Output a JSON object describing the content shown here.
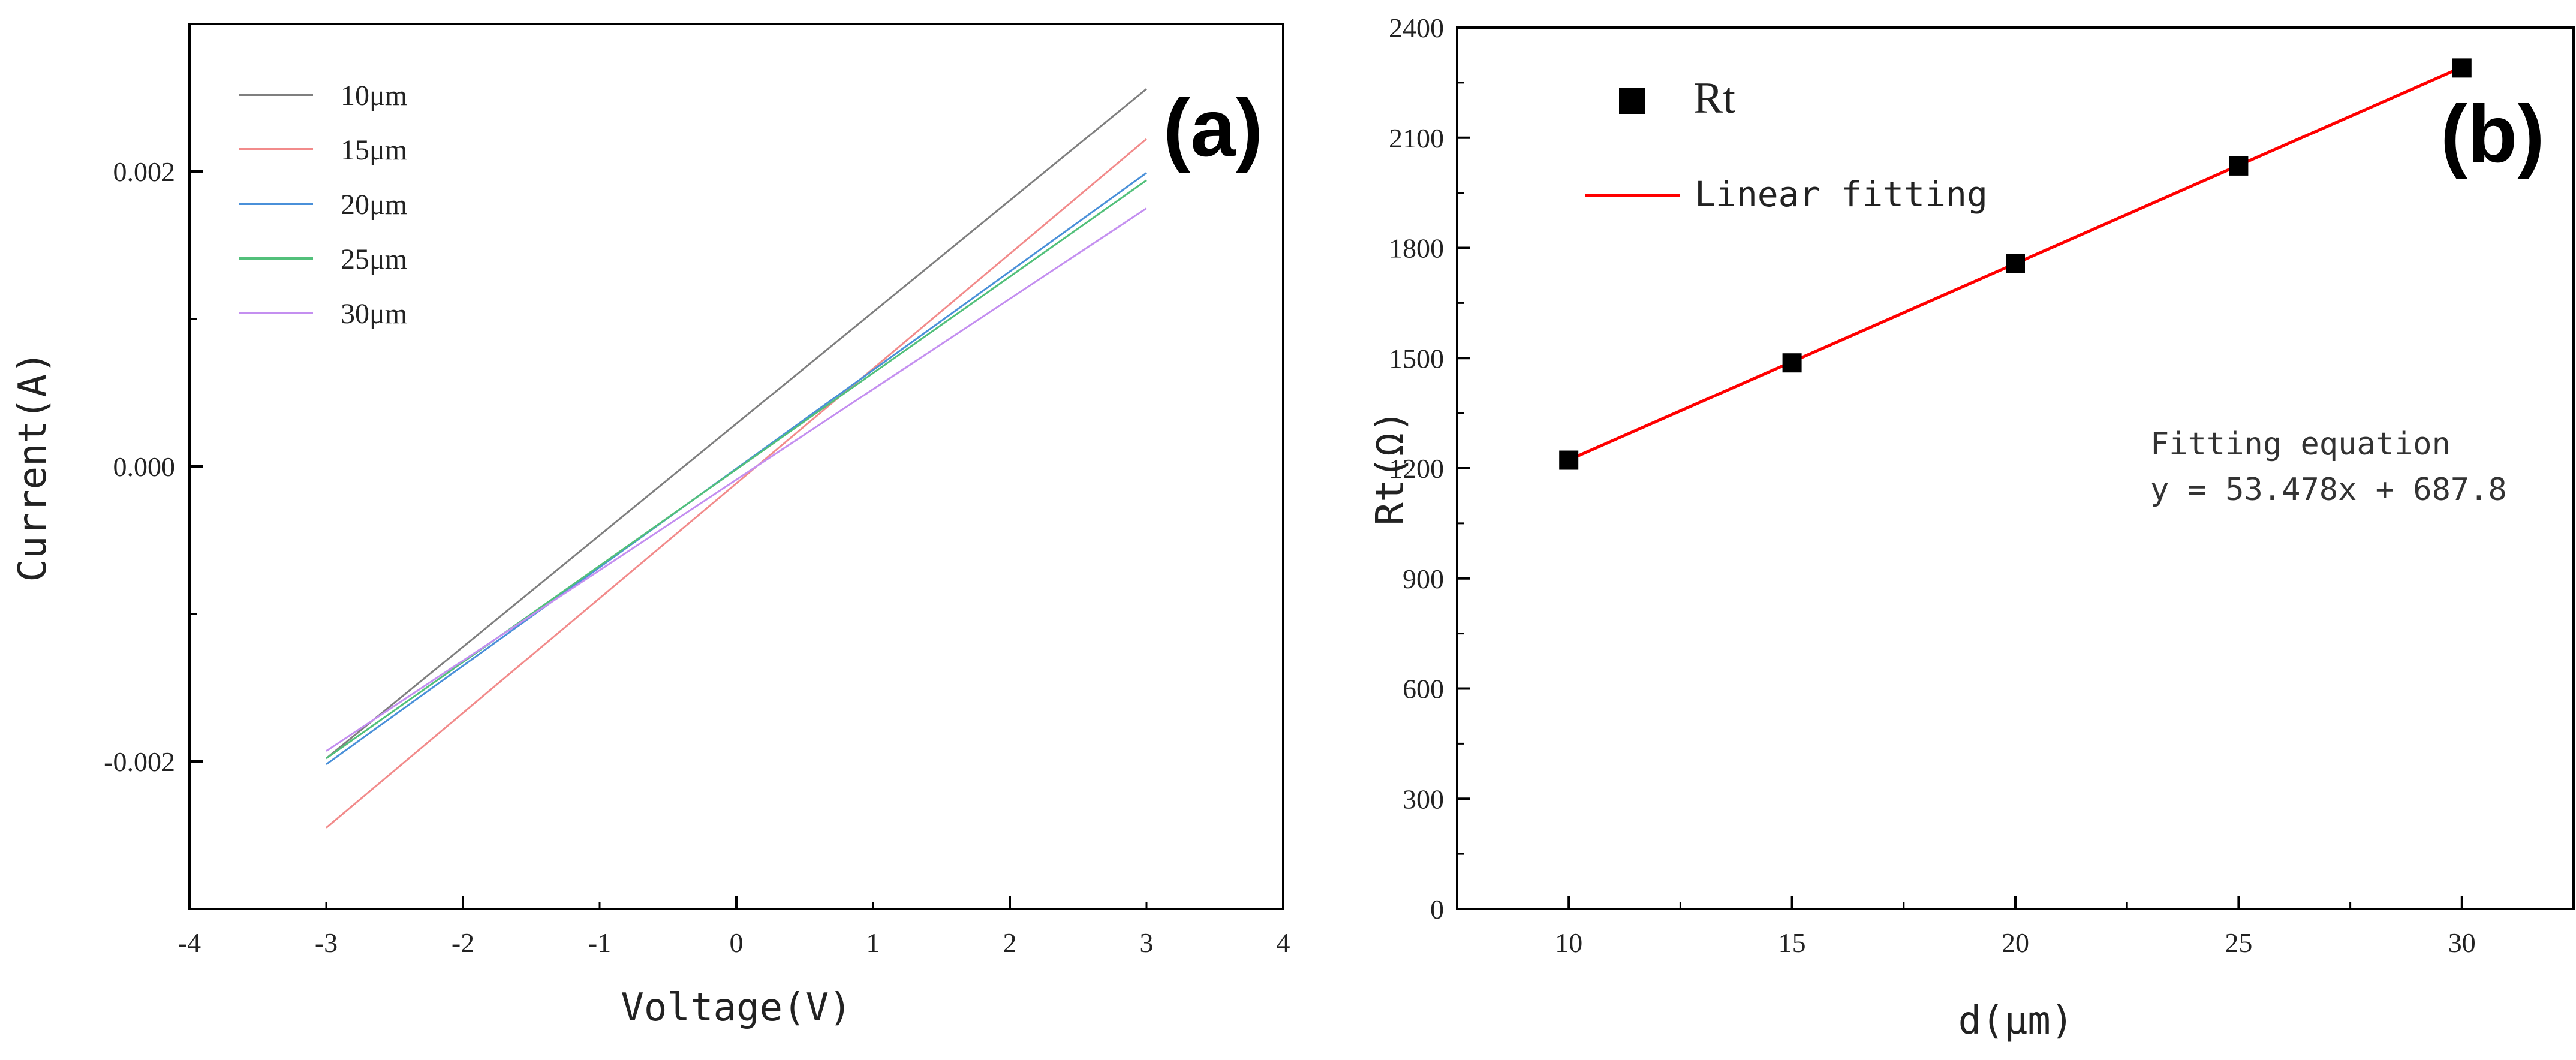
{
  "chart_data": [
    {
      "panel": "(a)",
      "type": "line",
      "xlabel": "Voltage(V)",
      "ylabel": "Current(A)",
      "xlim": [
        -4,
        4
      ],
      "ylim": [
        -0.003,
        0.003
      ],
      "xticks": [
        "-4",
        "-2",
        "0",
        "2",
        "4"
      ],
      "xticks_minor": [
        "-3",
        "-1",
        "1",
        "3"
      ],
      "yticks": [
        "-0.002",
        "0.000",
        "0.002"
      ],
      "grid": false,
      "legend_position": "top-left",
      "series": [
        {
          "name": "10μm",
          "color": "#7f7f7f",
          "x": [
            -3,
            3
          ],
          "y": [
            -0.00198,
            0.00256
          ]
        },
        {
          "name": "15μm",
          "color": "#f28b8b",
          "x": [
            -3,
            3
          ],
          "y": [
            -0.00245,
            0.00222
          ]
        },
        {
          "name": "20μm",
          "color": "#4a90d9",
          "x": [
            -3,
            3
          ],
          "y": [
            -0.00202,
            0.00199
          ]
        },
        {
          "name": "25μm",
          "color": "#52c07a",
          "x": [
            -3,
            3
          ],
          "y": [
            -0.00198,
            0.00194
          ]
        },
        {
          "name": "30μm",
          "color": "#c48ff0",
          "x": [
            -3,
            3
          ],
          "y": [
            -0.00193,
            0.00175
          ]
        }
      ]
    },
    {
      "panel": "(b)",
      "type": "scatter",
      "xlabel": "d(μm)",
      "ylabel": "Rt(Ω)",
      "xlim": [
        7.5,
        32.5
      ],
      "ylim": [
        0,
        2400
      ],
      "xticks": [
        "10",
        "15",
        "20",
        "25",
        "30"
      ],
      "yticks": [
        "0",
        "300",
        "600",
        "900",
        "1200",
        "1500",
        "1800",
        "2100",
        "2400"
      ],
      "grid": false,
      "legend_position": "top-left",
      "series": [
        {
          "name": "Rt",
          "color": "#000000",
          "x": [
            10,
            15,
            20,
            25,
            30
          ],
          "y": [
            1222,
            1487,
            1757,
            2023,
            2290
          ]
        }
      ],
      "fit": {
        "name": "Linear fitting",
        "color": "#ff0000",
        "slope": 53.478,
        "intercept": 687.8,
        "x_range": [
          10,
          30
        ]
      },
      "annotation": [
        "Fitting equation",
        "y = 53.478x + 687.8"
      ]
    }
  ]
}
